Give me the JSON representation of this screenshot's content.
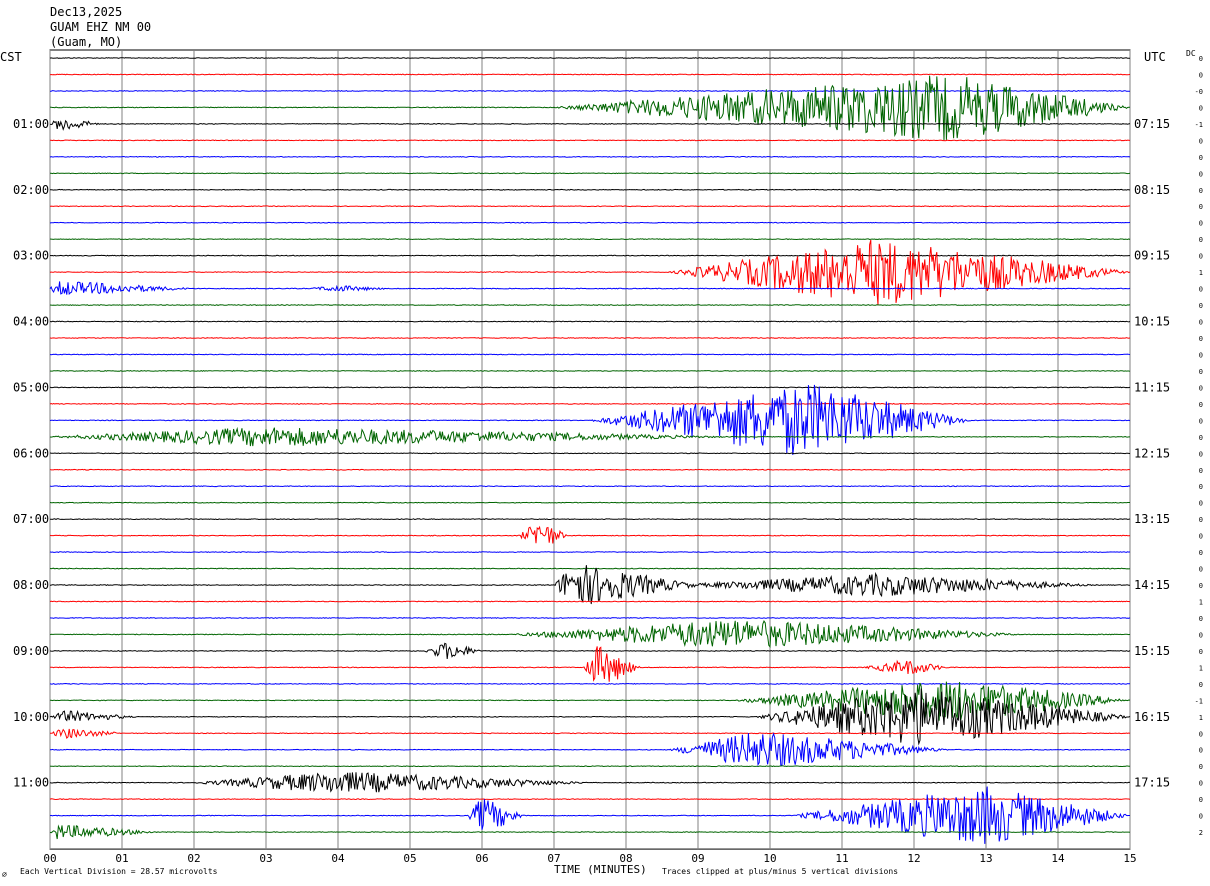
{
  "header": {
    "date": "Dec13,2025",
    "station": "GUAM EHZ NM 00",
    "location": "(Guam, MO)"
  },
  "left_axis_label": "CST",
  "right_axis_label": "UTC",
  "dc_header": "DC",
  "footer": {
    "scale_note": "Each Vertical Division =   28.57 microvolts",
    "xlabel": "TIME (MINUTES)",
    "clip_note": "Traces clipped at plus/minus 5 vertical divisions"
  },
  "colors": {
    "cycle": [
      "#000000",
      "#ff0000",
      "#0000ff",
      "#006400"
    ],
    "grid": "#808080"
  },
  "chart_data": {
    "type": "line",
    "title": "GUAM EHZ NM 00",
    "xlabel": "TIME (MINUTES)",
    "xlim": [
      0,
      15
    ],
    "x_ticks": [
      "00",
      "01",
      "02",
      "03",
      "04",
      "05",
      "06",
      "07",
      "08",
      "09",
      "10",
      "11",
      "12",
      "13",
      "14",
      "15"
    ],
    "n_traces": 48,
    "cst_labels": [
      {
        "trace": 4,
        "label": "01:00"
      },
      {
        "trace": 8,
        "label": "02:00"
      },
      {
        "trace": 12,
        "label": "03:00"
      },
      {
        "trace": 16,
        "label": "04:00"
      },
      {
        "trace": 20,
        "label": "05:00"
      },
      {
        "trace": 24,
        "label": "06:00"
      },
      {
        "trace": 28,
        "label": "07:00"
      },
      {
        "trace": 32,
        "label": "08:00"
      },
      {
        "trace": 36,
        "label": "09:00"
      },
      {
        "trace": 40,
        "label": "10:00"
      },
      {
        "trace": 44,
        "label": "11:00"
      }
    ],
    "utc_labels": [
      {
        "trace": 4,
        "label": "07:15"
      },
      {
        "trace": 8,
        "label": "08:15"
      },
      {
        "trace": 12,
        "label": "09:15"
      },
      {
        "trace": 16,
        "label": "10:15"
      },
      {
        "trace": 20,
        "label": "11:15"
      },
      {
        "trace": 24,
        "label": "12:15"
      },
      {
        "trace": 28,
        "label": "13:15"
      },
      {
        "trace": 32,
        "label": "14:15"
      },
      {
        "trace": 36,
        "label": "15:15"
      },
      {
        "trace": 40,
        "label": "16:15"
      },
      {
        "trace": 44,
        "label": "17:15"
      }
    ],
    "dc_offsets": [
      "0",
      "0",
      "-0",
      "0",
      "-1",
      "0",
      "0",
      "0",
      "0",
      "0",
      "0",
      "0",
      "0",
      "1",
      "0",
      "0",
      "0",
      "0",
      "0",
      "0",
      "0",
      "0",
      "0",
      "0",
      "0",
      "0",
      "0",
      "0",
      "0",
      "0",
      "0",
      "0",
      "0",
      "1",
      "0",
      "0",
      "0",
      "1",
      "0",
      "-1",
      "1",
      "0",
      "0",
      "0",
      "0",
      "0",
      "0",
      "2"
    ],
    "events": [
      {
        "trace": 3,
        "start": 7.0,
        "peak": 12.5,
        "end": 15.0,
        "amp": 4.5
      },
      {
        "trace": 4,
        "start": 0.0,
        "peak": 0.15,
        "end": 0.7,
        "amp": 1.0
      },
      {
        "trace": 14,
        "start": 3.6,
        "peak": 4.0,
        "end": 4.7,
        "amp": 0.4
      },
      {
        "trace": 13,
        "start": 8.6,
        "peak": 11.5,
        "end": 15.0,
        "amp": 4.5
      },
      {
        "trace": 14,
        "start": 0.0,
        "peak": 0.1,
        "end": 2.0,
        "amp": 1.0
      },
      {
        "trace": 22,
        "start": 7.5,
        "peak": 10.5,
        "end": 12.8,
        "amp": 5.0
      },
      {
        "trace": 23,
        "start": 0.0,
        "peak": 3.0,
        "end": 9.5,
        "amp": 1.3
      },
      {
        "trace": 29,
        "start": 6.5,
        "peak": 6.8,
        "end": 7.2,
        "amp": 2.0
      },
      {
        "trace": 32,
        "start": 7.0,
        "peak": 7.25,
        "end": 9.0,
        "amp": 3.0
      },
      {
        "trace": 32,
        "start": 8.7,
        "peak": 11.5,
        "end": 14.5,
        "amp": 1.5
      },
      {
        "trace": 35,
        "start": 6.4,
        "peak": 9.5,
        "end": 13.5,
        "amp": 2.0
      },
      {
        "trace": 36,
        "start": 5.2,
        "peak": 5.5,
        "end": 6.0,
        "amp": 1.2
      },
      {
        "trace": 37,
        "start": 7.4,
        "peak": 7.6,
        "end": 8.2,
        "amp": 3.0
      },
      {
        "trace": 37,
        "start": 11.3,
        "peak": 11.9,
        "end": 12.5,
        "amp": 1.0
      },
      {
        "trace": 39,
        "start": 9.5,
        "peak": 12.5,
        "end": 15.0,
        "amp": 3.0
      },
      {
        "trace": 40,
        "start": 0.0,
        "peak": 0.2,
        "end": 1.2,
        "amp": 0.8
      },
      {
        "trace": 40,
        "start": 9.8,
        "peak": 12.0,
        "end": 15.0,
        "amp": 4.0
      },
      {
        "trace": 41,
        "start": 0.0,
        "peak": 0.2,
        "end": 1.0,
        "amp": 0.7
      },
      {
        "trace": 42,
        "start": 8.6,
        "peak": 9.8,
        "end": 12.5,
        "amp": 2.5
      },
      {
        "trace": 44,
        "start": 2.0,
        "peak": 4.0,
        "end": 7.5,
        "amp": 1.5
      },
      {
        "trace": 46,
        "start": 5.8,
        "peak": 6.0,
        "end": 6.6,
        "amp": 2.5
      },
      {
        "trace": 46,
        "start": 10.3,
        "peak": 13.0,
        "end": 15.0,
        "amp": 4.0
      },
      {
        "trace": 47,
        "start": 0.0,
        "peak": 0.1,
        "end": 1.5,
        "amp": 1.0
      }
    ]
  }
}
